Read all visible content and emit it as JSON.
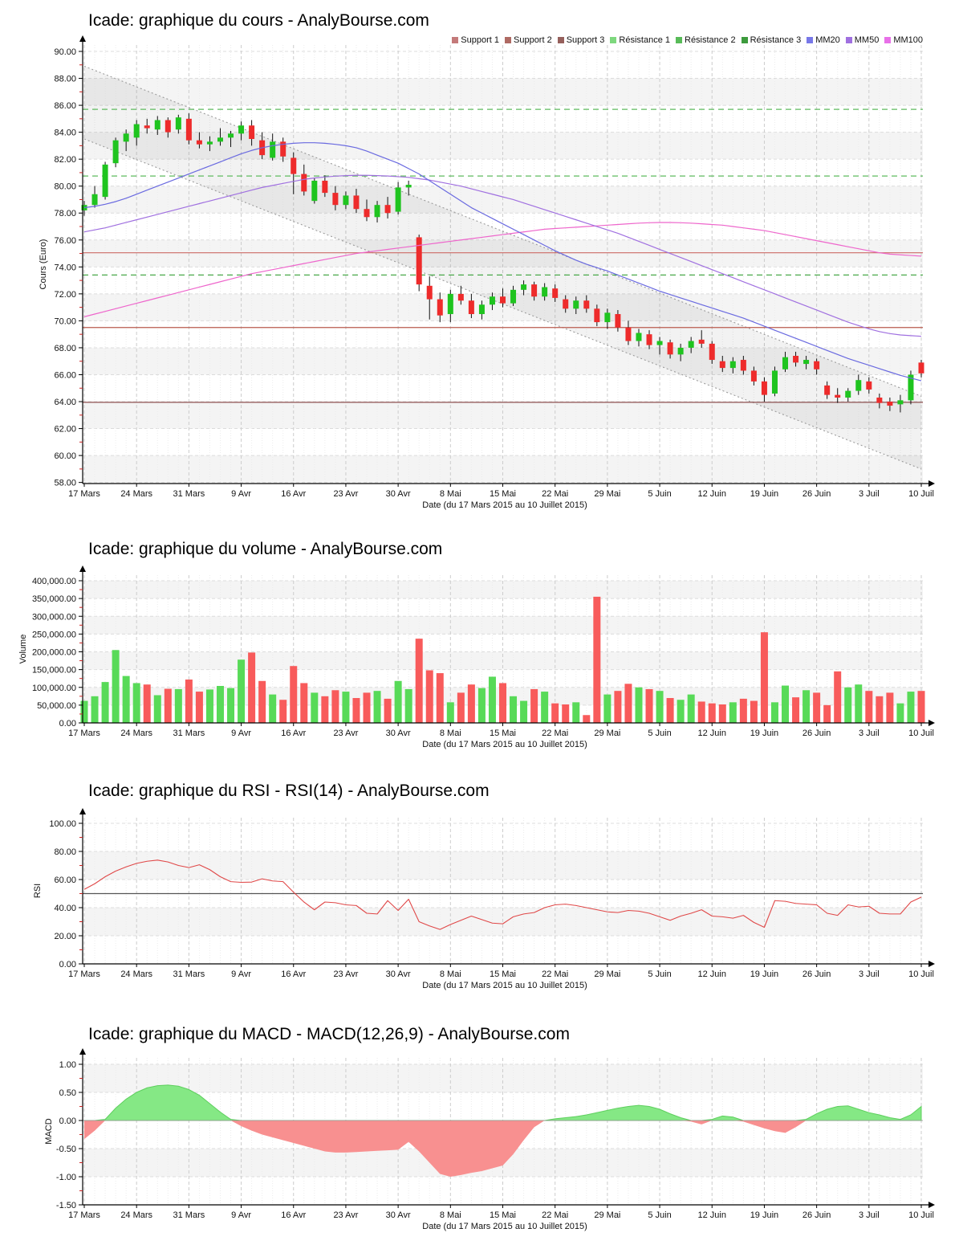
{
  "page": {
    "background": "#ffffff"
  },
  "chart_data": [
    {
      "type": "candlestick",
      "title": "Icade: graphique du cours - AnalyBourse.com",
      "ylabel": "Cours (Euro)",
      "xlabel": "Date (du 17 Mars 2015 au 10 Juillet 2015)",
      "ylim": [
        58,
        90
      ],
      "ytick_step": 2,
      "xticklabels": [
        "17 Mars",
        "24 Mars",
        "31 Mars",
        "9 Avr",
        "16 Avr",
        "23 Avr",
        "30 Avr",
        "8 Mai",
        "15 Mai",
        "22 Mai",
        "29 Mai",
        "5 Juin",
        "12 Juin",
        "19 Juin",
        "26 Juin",
        "3 Juil",
        "10 Juil"
      ],
      "legend": [
        {
          "label": "Support 1",
          "color": "#c47a7a"
        },
        {
          "label": "Support 2",
          "color": "#af6a63"
        },
        {
          "label": "Support 3",
          "color": "#96605c"
        },
        {
          "label": "Résistance 1",
          "color": "#7ed87e"
        },
        {
          "label": "Résistance 2",
          "color": "#58bb58"
        },
        {
          "label": "Résistance 3",
          "color": "#3d9b3d"
        },
        {
          "label": "MM20",
          "color": "#7878e8"
        },
        {
          "label": "MM50",
          "color": "#a070e0"
        },
        {
          "label": "MM100",
          "color": "#e870e8"
        }
      ],
      "supports": [
        {
          "value": 75.05,
          "color": "#cc6b66"
        },
        {
          "value": 69.5,
          "color": "#b85a4d"
        },
        {
          "value": 63.95,
          "color": "#8e5050"
        }
      ],
      "resistances": [
        {
          "value": 85.7,
          "color": "#5fbb5f"
        },
        {
          "value": 80.75,
          "color": "#5fbb5f"
        },
        {
          "value": 73.4,
          "color": "#4aa84a"
        }
      ],
      "channel": {
        "upper": [
          88.9,
          64.4
        ],
        "lower": [
          83.5,
          59.0
        ],
        "line_color": "#9b9b9b",
        "fill": "rgba(0,0,0,0.05)"
      },
      "stripe_bands": [
        [
          86,
          88
        ],
        [
          82,
          84
        ],
        [
          78,
          80
        ],
        [
          74,
          76
        ],
        [
          70,
          72
        ],
        [
          66,
          68
        ],
        [
          62,
          64
        ],
        [
          58,
          60
        ]
      ],
      "up_color": "#1fc41f",
      "down_color": "#ee2b2b",
      "ohlc": [
        [
          78.2,
          78.9,
          77.8,
          78.6
        ],
        [
          78.6,
          80.0,
          78.4,
          79.4
        ],
        [
          79.2,
          81.8,
          79.0,
          81.6
        ],
        [
          81.7,
          83.6,
          81.4,
          83.4
        ],
        [
          83.3,
          84.2,
          82.6,
          83.9
        ],
        [
          83.6,
          84.9,
          83.0,
          84.6
        ],
        [
          84.5,
          85.0,
          83.9,
          84.3
        ],
        [
          84.2,
          85.2,
          83.8,
          84.9
        ],
        [
          84.9,
          85.1,
          83.6,
          84.0
        ],
        [
          84.2,
          85.3,
          83.9,
          85.1
        ],
        [
          85.0,
          85.4,
          83.1,
          83.4
        ],
        [
          83.4,
          84.0,
          82.8,
          83.1
        ],
        [
          83.1,
          83.7,
          82.6,
          83.3
        ],
        [
          83.3,
          84.3,
          83.0,
          83.6
        ],
        [
          83.6,
          84.1,
          82.9,
          83.9
        ],
        [
          83.9,
          84.8,
          83.4,
          84.5
        ],
        [
          84.5,
          84.9,
          83.0,
          83.5
        ],
        [
          83.4,
          84.0,
          82.0,
          82.3
        ],
        [
          82.1,
          83.9,
          81.9,
          83.3
        ],
        [
          83.3,
          83.6,
          81.8,
          82.2
        ],
        [
          82.1,
          82.5,
          79.4,
          80.9
        ],
        [
          80.9,
          81.6,
          79.3,
          79.6
        ],
        [
          78.9,
          80.6,
          78.7,
          80.4
        ],
        [
          80.4,
          80.8,
          79.2,
          79.5
        ],
        [
          79.5,
          80.0,
          78.2,
          78.6
        ],
        [
          78.6,
          79.6,
          78.3,
          79.3
        ],
        [
          79.3,
          79.8,
          78.0,
          78.3
        ],
        [
          78.3,
          79.0,
          77.4,
          77.7
        ],
        [
          77.7,
          78.9,
          77.3,
          78.6
        ],
        [
          78.6,
          79.2,
          77.6,
          78.0
        ],
        [
          78.1,
          80.3,
          77.9,
          79.9
        ],
        [
          79.9,
          80.4,
          79.3,
          80.1
        ],
        [
          76.2,
          76.4,
          72.2,
          72.7
        ],
        [
          72.6,
          73.3,
          70.1,
          71.6
        ],
        [
          71.6,
          72.1,
          69.9,
          70.4
        ],
        [
          70.5,
          72.3,
          69.9,
          72.0
        ],
        [
          72.0,
          72.6,
          71.2,
          71.5
        ],
        [
          71.5,
          72.0,
          70.2,
          70.5
        ],
        [
          70.5,
          71.5,
          70.1,
          71.2
        ],
        [
          71.2,
          72.1,
          70.8,
          71.8
        ],
        [
          71.8,
          72.4,
          71.0,
          71.3
        ],
        [
          71.3,
          72.6,
          71.1,
          72.3
        ],
        [
          72.3,
          73.0,
          71.9,
          72.7
        ],
        [
          72.7,
          72.9,
          71.5,
          71.8
        ],
        [
          71.8,
          72.8,
          71.5,
          72.5
        ],
        [
          72.4,
          72.7,
          71.4,
          71.7
        ],
        [
          71.6,
          71.9,
          70.6,
          70.9
        ],
        [
          70.9,
          71.8,
          70.5,
          71.5
        ],
        [
          71.5,
          71.9,
          70.6,
          70.9
        ],
        [
          70.9,
          71.2,
          69.6,
          69.9
        ],
        [
          69.9,
          70.9,
          69.4,
          70.6
        ],
        [
          70.5,
          70.8,
          69.2,
          69.5
        ],
        [
          69.5,
          70.0,
          68.2,
          68.5
        ],
        [
          68.5,
          69.4,
          68.1,
          69.1
        ],
        [
          69.0,
          69.3,
          67.9,
          68.2
        ],
        [
          68.2,
          68.8,
          67.5,
          68.5
        ],
        [
          68.4,
          68.6,
          67.2,
          67.5
        ],
        [
          67.5,
          68.3,
          67.0,
          68.0
        ],
        [
          68.0,
          68.8,
          67.6,
          68.5
        ],
        [
          68.6,
          69.3,
          68.0,
          68.3
        ],
        [
          68.3,
          68.5,
          66.8,
          67.1
        ],
        [
          67.0,
          67.4,
          66.2,
          66.5
        ],
        [
          66.5,
          67.3,
          66.1,
          67.0
        ],
        [
          67.1,
          67.4,
          66.0,
          66.3
        ],
        [
          66.3,
          66.6,
          65.2,
          65.5
        ],
        [
          65.5,
          65.8,
          64.0,
          64.5
        ],
        [
          64.6,
          66.6,
          64.4,
          66.3
        ],
        [
          66.4,
          67.7,
          66.2,
          67.3
        ],
        [
          67.4,
          67.7,
          66.6,
          66.9
        ],
        [
          66.8,
          67.4,
          66.4,
          67.1
        ],
        [
          67.0,
          67.2,
          66.0,
          66.4
        ],
        [
          65.2,
          65.5,
          64.2,
          64.5
        ],
        [
          64.5,
          65.0,
          63.9,
          64.3
        ],
        [
          64.3,
          65.0,
          64.0,
          64.8
        ],
        [
          64.8,
          66.0,
          64.5,
          65.6
        ],
        [
          65.5,
          65.8,
          64.6,
          64.9
        ],
        [
          64.3,
          64.6,
          63.5,
          63.9
        ],
        [
          64.0,
          64.3,
          63.3,
          63.7
        ],
        [
          63.8,
          64.5,
          63.2,
          64.1
        ],
        [
          64.1,
          66.3,
          63.8,
          66.0
        ],
        [
          66.9,
          67.1,
          65.8,
          66.1
        ]
      ],
      "mm20": [
        78.4,
        78.5,
        78.65,
        78.85,
        79.1,
        79.4,
        79.7,
        80.0,
        80.3,
        80.6,
        80.9,
        81.2,
        81.5,
        81.8,
        82.1,
        82.4,
        82.65,
        82.85,
        83.0,
        83.1,
        83.18,
        83.22,
        83.22,
        83.18,
        83.1,
        83.0,
        82.85,
        82.6,
        82.3,
        82.0,
        81.7,
        81.3,
        80.9,
        80.4,
        79.9,
        79.4,
        78.9,
        78.4,
        78.0,
        77.6,
        77.2,
        76.8,
        76.4,
        76.0,
        75.6,
        75.2,
        74.85,
        74.5,
        74.2,
        73.95,
        73.7,
        73.4,
        73.1,
        72.8,
        72.5,
        72.2,
        71.95,
        71.7,
        71.45,
        71.2,
        70.95,
        70.7,
        70.45,
        70.2,
        69.9,
        69.6,
        69.3,
        69.0,
        68.7,
        68.4,
        68.1,
        67.8,
        67.5,
        67.2,
        66.95,
        66.7,
        66.45,
        66.2,
        65.95,
        65.75,
        65.55
      ],
      "mm50": [
        76.6,
        76.75,
        76.9,
        77.1,
        77.3,
        77.5,
        77.7,
        77.9,
        78.1,
        78.3,
        78.5,
        78.7,
        78.9,
        79.1,
        79.3,
        79.5,
        79.7,
        79.9,
        80.05,
        80.2,
        80.35,
        80.5,
        80.6,
        80.68,
        80.74,
        80.78,
        80.8,
        80.8,
        80.78,
        80.75,
        80.7,
        80.65,
        80.55,
        80.45,
        80.3,
        80.15,
        80.0,
        79.8,
        79.6,
        79.4,
        79.2,
        79.0,
        78.75,
        78.5,
        78.25,
        78.0,
        77.75,
        77.5,
        77.25,
        77.0,
        76.75,
        76.5,
        76.2,
        75.9,
        75.6,
        75.3,
        75.0,
        74.7,
        74.4,
        74.1,
        73.8,
        73.5,
        73.2,
        72.9,
        72.6,
        72.3,
        72.0,
        71.7,
        71.4,
        71.1,
        70.8,
        70.5,
        70.2,
        69.9,
        69.65,
        69.4,
        69.2,
        69.05,
        68.95,
        68.9,
        68.85
      ],
      "mm100": [
        70.3,
        70.5,
        70.7,
        70.9,
        71.1,
        71.3,
        71.5,
        71.7,
        71.9,
        72.1,
        72.3,
        72.5,
        72.7,
        72.9,
        73.1,
        73.3,
        73.5,
        73.65,
        73.8,
        73.95,
        74.1,
        74.25,
        74.4,
        74.55,
        74.7,
        74.85,
        75.0,
        75.1,
        75.2,
        75.3,
        75.4,
        75.5,
        75.6,
        75.7,
        75.8,
        75.9,
        76.0,
        76.1,
        76.2,
        76.3,
        76.4,
        76.5,
        76.6,
        76.7,
        76.8,
        76.85,
        76.9,
        76.95,
        77.0,
        77.05,
        77.1,
        77.15,
        77.2,
        77.25,
        77.28,
        77.3,
        77.3,
        77.28,
        77.25,
        77.2,
        77.15,
        77.1,
        77.0,
        76.9,
        76.8,
        76.7,
        76.55,
        76.4,
        76.25,
        76.1,
        75.95,
        75.8,
        75.65,
        75.5,
        75.35,
        75.2,
        75.05,
        74.95,
        74.9,
        74.85,
        74.8
      ],
      "mm_colors": {
        "mm20": "#6a6ae0",
        "mm50": "#a070e0",
        "mm100": "#ee66cc"
      }
    },
    {
      "type": "bar",
      "title": "Icade: graphique du volume - AnalyBourse.com",
      "ylabel": "Volume",
      "xlabel": "Date (du 17 Mars 2015 au 10 Juillet 2015)",
      "ylim": [
        0,
        400000
      ],
      "ytick_step": 50000,
      "stripe_bands": [
        [
          350000,
          400000
        ],
        [
          250000,
          300000
        ],
        [
          150000,
          200000
        ],
        [
          50000,
          100000
        ]
      ],
      "up_color": "#58da58",
      "down_color": "#f85b5b",
      "values": [
        62000,
        75000,
        115000,
        205000,
        132000,
        112000,
        108000,
        78000,
        96000,
        95000,
        122000,
        88000,
        94000,
        104000,
        98000,
        178000,
        198000,
        118000,
        80000,
        65000,
        160000,
        112000,
        85000,
        75000,
        92000,
        88000,
        70000,
        85000,
        90000,
        68000,
        118000,
        95000,
        237000,
        148000,
        140000,
        58000,
        85000,
        108000,
        98000,
        130000,
        112000,
        75000,
        62000,
        95000,
        88000,
        55000,
        52000,
        58000,
        22000,
        355000,
        80000,
        90000,
        110000,
        100000,
        95000,
        90000,
        70000,
        65000,
        80000,
        60000,
        55000,
        52000,
        58000,
        68000,
        62000,
        255000,
        58000,
        105000,
        72000,
        92000,
        85000,
        50000,
        145000,
        100000,
        108000,
        90000,
        75000,
        85000,
        55000,
        88000,
        90000
      ]
    },
    {
      "type": "line",
      "title": "Icade: graphique du RSI - RSI(14) - AnalyBourse.com",
      "ylabel": "RSI",
      "xlabel": "Date (du 17 Mars 2015 au 10 Juillet 2015)",
      "ylim": [
        0,
        100
      ],
      "ytick_step": 20,
      "midline": 50,
      "stripe_bands": [
        [
          60,
          80
        ],
        [
          20,
          40
        ]
      ],
      "line_color": "#e04848",
      "values": [
        53,
        57,
        62,
        66,
        69,
        71.5,
        73,
        73.8,
        72.5,
        70,
        68.5,
        70.5,
        67,
        62,
        58.5,
        58,
        58.2,
        60.5,
        59,
        58.5,
        51,
        44,
        38.5,
        44,
        43.5,
        42,
        41.5,
        36,
        35.5,
        45,
        38,
        46,
        30,
        27,
        24.5,
        28,
        31,
        34,
        31.5,
        29,
        28.5,
        33.5,
        35.5,
        36.5,
        40,
        42,
        42.5,
        41.5,
        40,
        38.5,
        37,
        36.5,
        38,
        37.5,
        36,
        33.5,
        31,
        34,
        36,
        38.5,
        34,
        33.5,
        32.5,
        34.5,
        29.5,
        26,
        45,
        44.5,
        43,
        42.5,
        42,
        36,
        34.5,
        42,
        40.5,
        41,
        36,
        35.5,
        35.5,
        44,
        47.5
      ]
    },
    {
      "type": "area",
      "title": "Icade: graphique du MACD - MACD(12,26,9) - AnalyBourse.com",
      "ylabel": "MACD",
      "xlabel": "Date (du 17 Mars 2015 au 10 Juillet 2015)",
      "ylim": [
        -1.5,
        1.0
      ],
      "ytick_step": 0.5,
      "stripe_bands": [
        [
          0.5,
          1.0
        ],
        [
          -1.0,
          -0.5
        ]
      ],
      "pos_color": "#85e885",
      "neg_color": "#f89090",
      "edge_color": "#5ecf5e",
      "values": [
        -0.33,
        -0.18,
        0.02,
        0.22,
        0.38,
        0.5,
        0.58,
        0.62,
        0.63,
        0.61,
        0.55,
        0.45,
        0.3,
        0.15,
        0.02,
        -0.1,
        -0.18,
        -0.25,
        -0.3,
        -0.35,
        -0.4,
        -0.45,
        -0.5,
        -0.55,
        -0.57,
        -0.57,
        -0.56,
        -0.55,
        -0.54,
        -0.53,
        -0.52,
        -0.38,
        -0.55,
        -0.75,
        -0.95,
        -1.0,
        -0.97,
        -0.93,
        -0.9,
        -0.85,
        -0.8,
        -0.6,
        -0.35,
        -0.12,
        0.0,
        0.03,
        0.05,
        0.07,
        0.1,
        0.14,
        0.18,
        0.22,
        0.25,
        0.27,
        0.25,
        0.2,
        0.12,
        0.05,
        -0.02,
        -0.07,
        0.02,
        0.08,
        0.06,
        -0.02,
        -0.08,
        -0.14,
        -0.19,
        -0.22,
        -0.12,
        0.02,
        0.12,
        0.2,
        0.25,
        0.26,
        0.2,
        0.14,
        0.1,
        0.05,
        0.02,
        0.1,
        0.25
      ]
    }
  ]
}
